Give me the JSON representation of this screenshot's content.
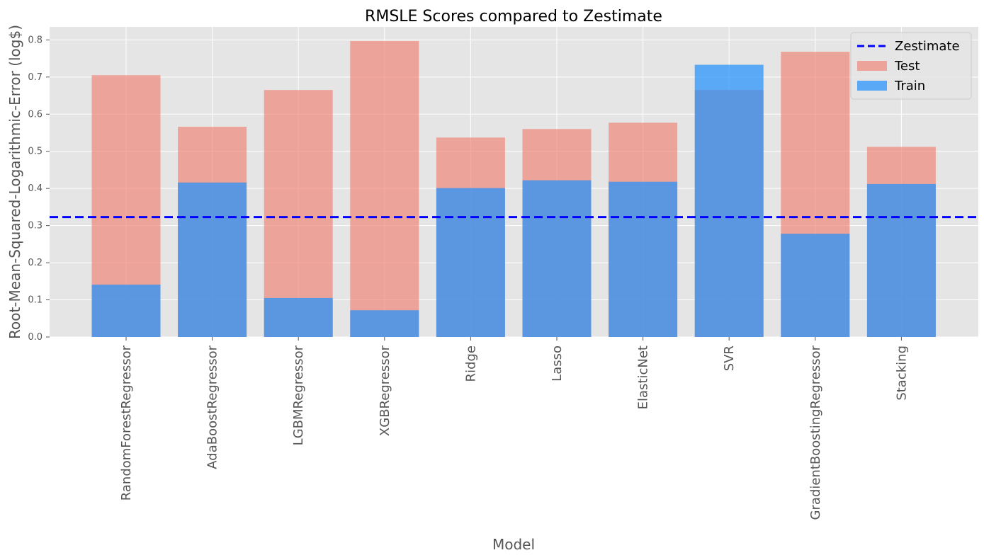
{
  "chart_data": {
    "type": "bar",
    "title": "RMSLE Scores compared to Zestimate",
    "xlabel": "Model",
    "ylabel": "Root-Mean-Squared-Logarithmic-Error (log$)",
    "ylim": [
      0,
      0.835
    ],
    "yticks": [
      "0.0",
      "0.1",
      "0.2",
      "0.3",
      "0.4",
      "0.5",
      "0.6",
      "0.7",
      "0.8"
    ],
    "categories": [
      "RandomForestRegressor",
      "AdaBoostRegressor",
      "LGBMRegressor",
      "XGBRegressor",
      "Ridge",
      "Lasso",
      "ElasticNet",
      "SVR",
      "GradientBoostingRegressor",
      "Stacking"
    ],
    "series": [
      {
        "name": "Test",
        "color": "#f08070",
        "opacity": 0.65,
        "values": [
          0.705,
          0.566,
          0.665,
          0.797,
          0.537,
          0.56,
          0.577,
          0.665,
          0.768,
          0.512
        ]
      },
      {
        "name": "Train",
        "color": "#1e90ff",
        "opacity": 0.7,
        "values": [
          0.141,
          0.416,
          0.105,
          0.072,
          0.401,
          0.422,
          0.418,
          0.733,
          0.278,
          0.412
        ]
      }
    ],
    "reference_line": {
      "name": "Zestimate",
      "value": 0.323,
      "color": "#0000ff",
      "style": "dashed"
    },
    "legend": {
      "placement": "top-right",
      "entries": [
        "Zestimate",
        "Test",
        "Train"
      ]
    },
    "grid": true,
    "background": "#e5e5e5"
  }
}
